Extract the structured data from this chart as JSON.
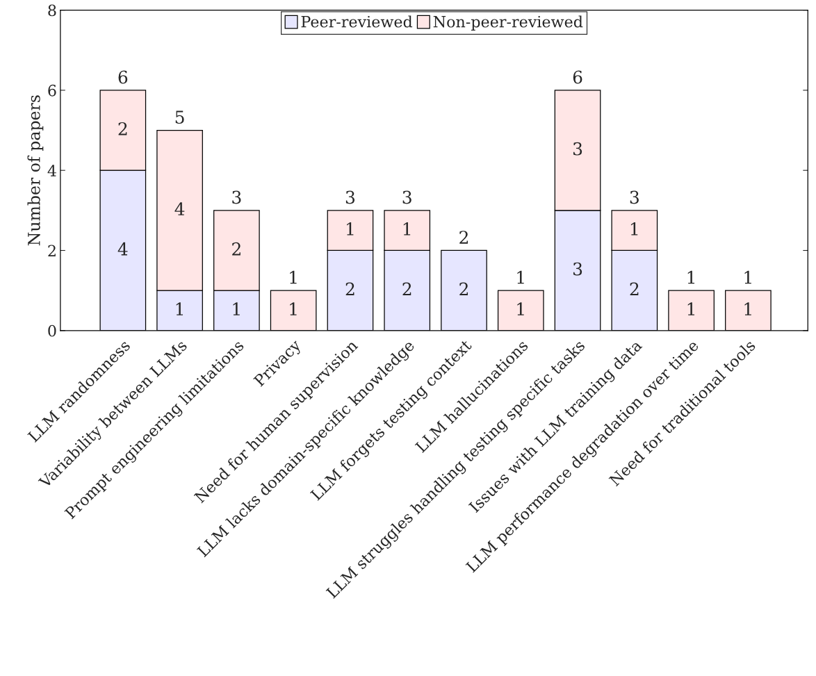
{
  "chart_data": {
    "type": "bar",
    "stacked": true,
    "ylabel": "Number of papers",
    "categories": [
      "LLM randomness",
      "Variability between LLMs",
      "Prompt engineering limitations",
      "Privacy",
      "Need for human supervision",
      "LLM lacks domain-specific knowledge",
      "LLM forgets testing context",
      "LLM hallucinations",
      "LLM struggles handling testing specific tasks",
      "Issues with LLM training data",
      "LLM performance degradation over time",
      "Need for traditional tools"
    ],
    "series": [
      {
        "name": "Peer-reviewed",
        "color": "#e6e6ff",
        "values": [
          4,
          1,
          1,
          0,
          2,
          2,
          2,
          0,
          3,
          2,
          0,
          0
        ],
        "value_labels": [
          "4",
          "1",
          "1",
          null,
          "2",
          "2",
          "2",
          null,
          "3",
          "2",
          null,
          null
        ]
      },
      {
        "name": "Non-peer-reviewed",
        "color": "#ffe6e6",
        "values": [
          2,
          4,
          2,
          1,
          1,
          1,
          0,
          1,
          3,
          1,
          1,
          1
        ],
        "value_labels": [
          "2",
          "4",
          "2",
          "1",
          "1",
          "1",
          null,
          "1",
          "3",
          "1",
          "1",
          "1"
        ]
      }
    ],
    "totals": [
      "6",
      "5",
      "3",
      "1",
      "3",
      "3",
      "2",
      "1",
      "6",
      "3",
      "1",
      "1"
    ],
    "ylim": [
      0,
      8
    ],
    "yticks": [
      0,
      2,
      4,
      6,
      8
    ],
    "grid": false,
    "legend": "top"
  }
}
